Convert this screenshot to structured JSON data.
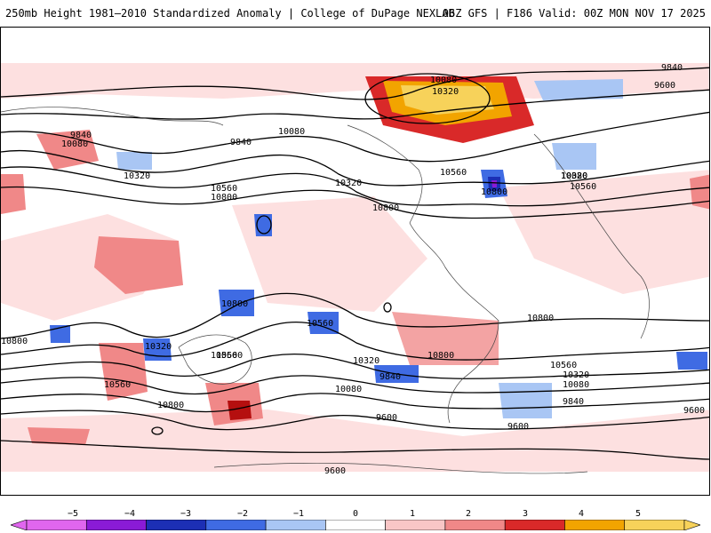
{
  "header": {
    "title": "250mb Height 1981–2010 Standardized Anomaly | College of DuPage NEXLAB",
    "run_info": "06Z GFS | F186 Valid: 00Z MON NOV 17 2025"
  },
  "map": {
    "variable": "250mb Height Standardized Anomaly",
    "contour_labels": [
      "9840",
      "9600",
      "10080",
      "10320",
      "10560",
      "10800",
      "9840",
      "10080",
      "10320",
      "10560",
      "10800",
      "9840",
      "10080",
      "10320",
      "10080",
      "10320",
      "10560",
      "10320",
      "10800",
      "10320",
      "10560",
      "10800",
      "10800",
      "10560",
      "10800",
      "10320",
      "10560",
      "10080",
      "9840",
      "10800",
      "10560",
      "10320",
      "10080",
      "9840",
      "9600",
      "9600",
      "9600",
      "9600",
      "10800",
      "10560"
    ]
  },
  "colorbar": {
    "ticks": [
      "−5",
      "−4",
      "−3",
      "−2",
      "−1",
      "0",
      "1",
      "2",
      "3",
      "4",
      "5"
    ],
    "colors": [
      "#e066ee",
      "#8a1bd6",
      "#1c2fb5",
      "#3f6be3",
      "#a9c6f4",
      "#ffffff",
      "#f9c6c6",
      "#f08888",
      "#d92929",
      "#f2a400",
      "#f7d25a"
    ]
  }
}
